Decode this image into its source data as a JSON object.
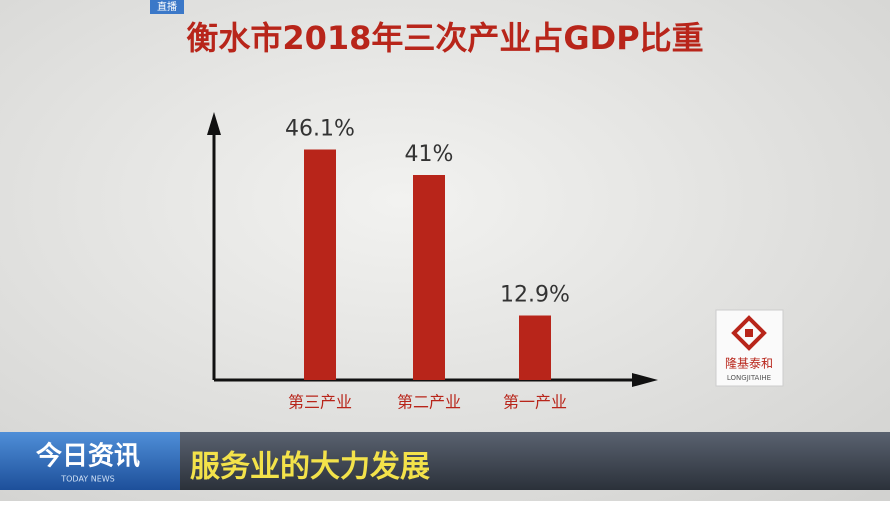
{
  "chart_data": {
    "type": "bar",
    "title": "衡水市2018年三次产业占GDP比重",
    "categories": [
      "第三产业",
      "第二产业",
      "第一产业"
    ],
    "values": [
      46.1,
      41,
      12.9
    ],
    "value_labels": [
      "46.1%",
      "41%",
      "12.9%"
    ],
    "color": "#b8251a",
    "ylim": [
      0,
      53
    ]
  },
  "live_tag": "直播",
  "logo": {
    "name": "隆基泰和",
    "subname": "LONGJITAIHE"
  },
  "banner": {
    "program": "今日资讯",
    "program_en": "TODAY NEWS",
    "headline": "服务业的大力发展"
  }
}
